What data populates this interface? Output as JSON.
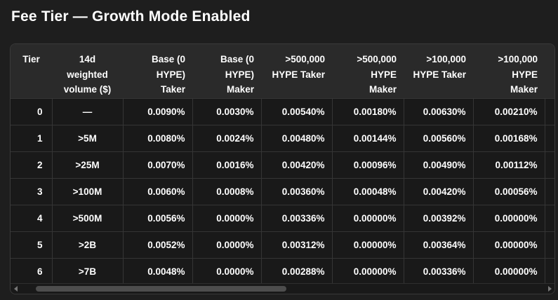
{
  "page": {
    "title": "Fee Tier — Growth Mode Enabled"
  },
  "colors": {
    "page_bg": "#1e1e1e",
    "table_bg": "#191919",
    "table_border": "#3a3a3a",
    "header_bg": "#2a2a2a",
    "grid_line": "#353535",
    "text": "#ffffff",
    "scrollbar_thumb": "#4d4d4d",
    "scrollbar_arrow": "#777777"
  },
  "fee_table": {
    "columns": [
      {
        "label": "Tier",
        "header_align": "center",
        "data_align": "right"
      },
      {
        "label": "14d\nweighted\nvolume ($)",
        "header_align": "center",
        "data_align": "center"
      },
      {
        "label": "Base (0\nHYPE)\nTaker",
        "header_align": "right",
        "data_align": "right"
      },
      {
        "label": "Base (0\nHYPE)\nMaker",
        "header_align": "right",
        "data_align": "right"
      },
      {
        "label": ">500,000\nHYPE Taker",
        "header_align": "right",
        "data_align": "right"
      },
      {
        "label": ">500,000\nHYPE\nMaker",
        "header_align": "right",
        "data_align": "right"
      },
      {
        "label": ">100,000\nHYPE Taker",
        "header_align": "right",
        "data_align": "right"
      },
      {
        "label": ">100,000\nHYPE\nMaker",
        "header_align": "right",
        "data_align": "right"
      }
    ],
    "rows": [
      [
        "0",
        "—",
        "0.0090%",
        "0.0030%",
        "0.00540%",
        "0.00180%",
        "0.00630%",
        "0.00210%"
      ],
      [
        "1",
        ">5M",
        "0.0080%",
        "0.0024%",
        "0.00480%",
        "0.00144%",
        "0.00560%",
        "0.00168%"
      ],
      [
        "2",
        ">25M",
        "0.0070%",
        "0.0016%",
        "0.00420%",
        "0.00096%",
        "0.00490%",
        "0.00112%"
      ],
      [
        "3",
        ">100M",
        "0.0060%",
        "0.0008%",
        "0.00360%",
        "0.00048%",
        "0.00420%",
        "0.00056%"
      ],
      [
        "4",
        ">500M",
        "0.0056%",
        "0.0000%",
        "0.00336%",
        "0.00000%",
        "0.00392%",
        "0.00000%"
      ],
      [
        "5",
        ">2B",
        "0.0052%",
        "0.0000%",
        "0.00312%",
        "0.00000%",
        "0.00364%",
        "0.00000%"
      ],
      [
        "6",
        ">7B",
        "0.0048%",
        "0.0000%",
        "0.00288%",
        "0.00000%",
        "0.00336%",
        "0.00000%"
      ]
    ]
  }
}
